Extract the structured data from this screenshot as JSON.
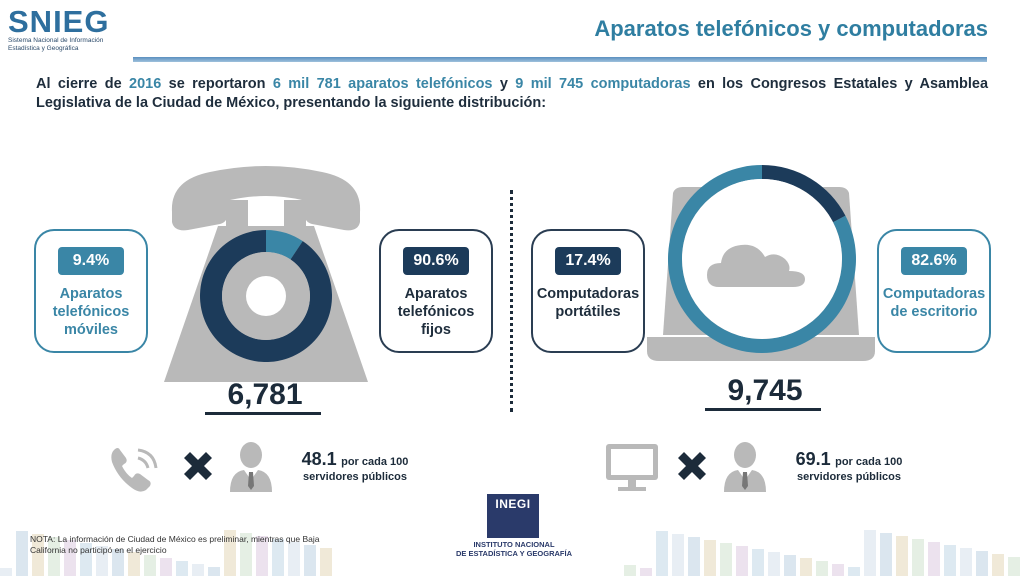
{
  "logo": {
    "name": "SNIEG",
    "subtitle_lines": [
      "Sistema Nacional de Información",
      "Estadística y Geográfica"
    ]
  },
  "header": {
    "title": "Aparatos telefónicos y computadoras"
  },
  "intro": {
    "p1": "Al cierre de ",
    "year": "2016",
    "p2": " se reportaron ",
    "phones": "6 mil 781 aparatos telefónicos",
    "p3": " y ",
    "computers": "9 mil 745 computadoras",
    "p4": " en los Congresos Estatales y Asamblea Legislativa de la Ciudad de México, presentando la siguiente distribución:"
  },
  "phones": {
    "mobile": {
      "pct": "9.4%",
      "label_lines": [
        "Aparatos",
        "telefónicos",
        "móviles"
      ]
    },
    "fixed": {
      "pct": "90.6%",
      "label_lines": [
        "Aparatos",
        "telefónicos",
        "fijos"
      ]
    },
    "total": "6,781",
    "ratio": {
      "value": "48.1",
      "unit": "por cada 100",
      "label": "servidores públicos"
    }
  },
  "computers": {
    "laptop": {
      "pct": "17.4%",
      "label_lines": [
        "Computadoras",
        "portátiles"
      ]
    },
    "desktop": {
      "pct": "82.6%",
      "label_lines": [
        "Computadoras",
        "de escritorio"
      ]
    },
    "total": "9,745",
    "ratio": {
      "value": "69.1",
      "unit": "por cada 100",
      "label": "servidores públicos"
    }
  },
  "note": "NOTA: La información de Ciudad de México es preliminar, mientras que Baja California no participó en el ejercicio",
  "inegi": {
    "acronym": "INEGI",
    "name_lines": [
      "INSTITUTO NACIONAL",
      "DE ESTADÍSTICA Y GEOGRAFÍA"
    ]
  },
  "colors": {
    "navy": "#1c3b5a",
    "teal": "#3a86a6",
    "gray": "#b9b9b9"
  },
  "icons": [
    "phone-icon",
    "multiply-icon",
    "user-icon",
    "monitor-icon",
    "cloud-icon",
    "laptop-icon",
    "telephone-icon"
  ],
  "chart_data": [
    {
      "type": "pie",
      "categories": [
        "Aparatos telefónicos móviles",
        "Aparatos telefónicos fijos"
      ],
      "values": [
        9.4,
        90.6
      ],
      "colors": [
        "#3a86a6",
        "#1c3b5a"
      ],
      "total": 6781
    },
    {
      "type": "pie",
      "categories": [
        "Computadoras portátiles",
        "Computadoras de escritorio"
      ],
      "values": [
        17.4,
        82.6
      ],
      "colors": [
        "#1c3b5a",
        "#3a86a6"
      ],
      "total": 9745
    }
  ]
}
